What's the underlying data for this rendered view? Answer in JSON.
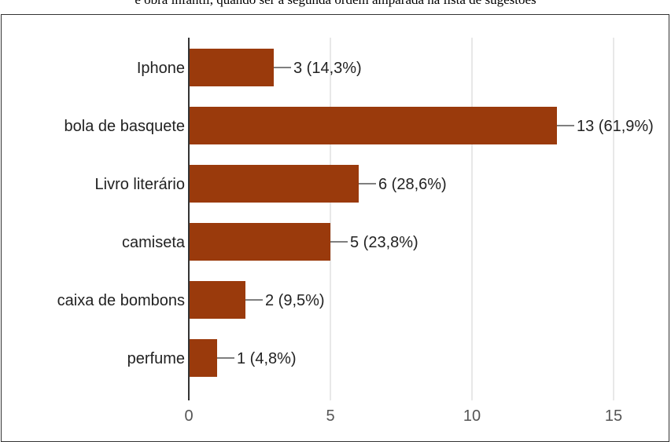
{
  "header": {
    "cropped_text": "e obra infantil, quando ser à segunda ordem amparada na lista de sugestões"
  },
  "chart_data": {
    "type": "bar",
    "orientation": "horizontal",
    "categories": [
      "Iphone",
      "bola de basquete",
      "Livro literário",
      "camiseta",
      "caixa de bombons",
      "perfume"
    ],
    "values": [
      3,
      13,
      6,
      5,
      2,
      1
    ],
    "value_labels": [
      "3 (14,3%)",
      "13 (61,9%)",
      "6 (28,6%)",
      "5 (23,8%)",
      "2 (9,5%)",
      "1 (4,8%)"
    ],
    "xlim": [
      0,
      15
    ],
    "xticks": [
      0,
      5,
      10,
      15
    ],
    "grid": true,
    "colors": {
      "bar": "#9a3a0c",
      "grid": "#e0e0e0",
      "axis": "#333333",
      "leader": "#555555"
    }
  }
}
